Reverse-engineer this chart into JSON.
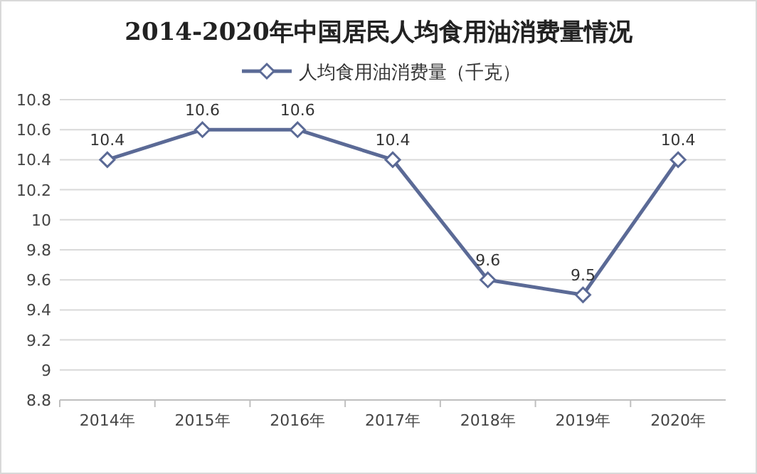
{
  "chart_data": {
    "type": "line",
    "title": "2014-2020年中国居民人均食用油消费量情况",
    "categories": [
      "2014年",
      "2015年",
      "2016年",
      "2017年",
      "2018年",
      "2019年",
      "2020年"
    ],
    "series": [
      {
        "name": "人均食用油消费量（千克）",
        "color": "#5b6a96",
        "values": [
          10.4,
          10.6,
          10.6,
          10.4,
          9.6,
          9.5,
          10.4
        ]
      }
    ],
    "ylim": [
      8.8,
      10.8
    ],
    "yticks": [
      8.8,
      9,
      9.2,
      9.4,
      9.6,
      9.8,
      10,
      10.2,
      10.4,
      10.6,
      10.8
    ],
    "grid": "y",
    "legend": "top",
    "marker": "diamond",
    "line_style": "solid",
    "data_labels": true
  }
}
